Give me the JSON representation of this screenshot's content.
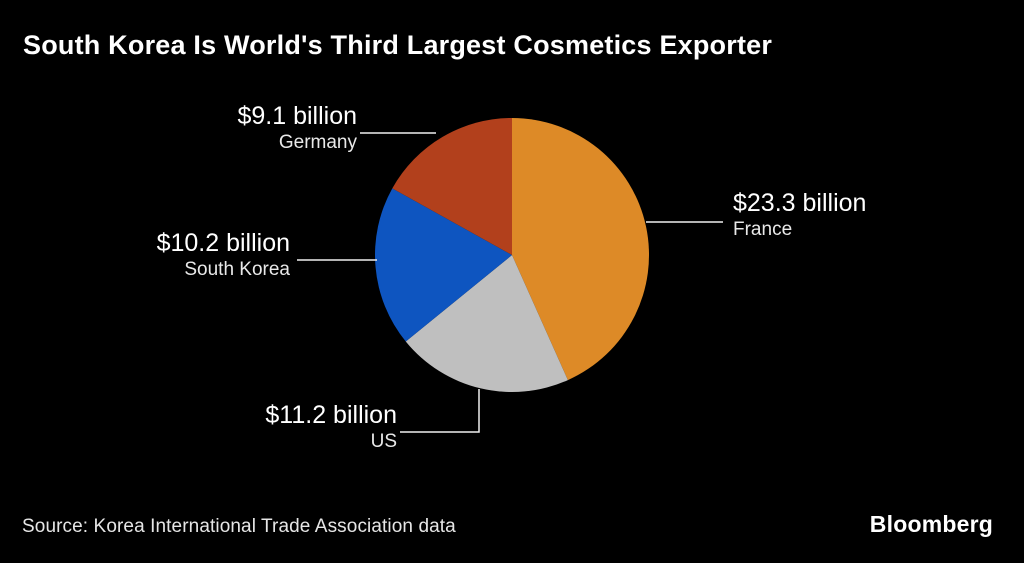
{
  "title": {
    "text": "South Korea Is World's Third Largest Cosmetics Exporter"
  },
  "source": {
    "text": "Source: Korea International Trade Association data"
  },
  "brand": {
    "logo_text": "Bloomberg"
  },
  "colors": {
    "background": "#000000",
    "title_text": "#ffffff",
    "label_text": "#ffffff",
    "callout_line": "#f0f0f0"
  },
  "chart_data": {
    "type": "pie",
    "title": "South Korea Is World's Third Largest Cosmetics Exporter",
    "unit": "USD billion",
    "total": 53.8,
    "start_angle_deg": 0,
    "direction": "clockwise",
    "legend_position": "callout-labels",
    "slices": [
      {
        "label": "France",
        "value": 23.3,
        "value_label": "$23.3 billion",
        "color": "#DD8A27"
      },
      {
        "label": "US",
        "value": 11.2,
        "value_label": "$11.2 billion",
        "color": "#BFBFBF"
      },
      {
        "label": "South Korea",
        "value": 10.2,
        "value_label": "$10.2 billion",
        "color": "#0E55C0"
      },
      {
        "label": "Germany",
        "value": 9.1,
        "value_label": "$9.1 billion",
        "color": "#B2401C"
      }
    ]
  }
}
